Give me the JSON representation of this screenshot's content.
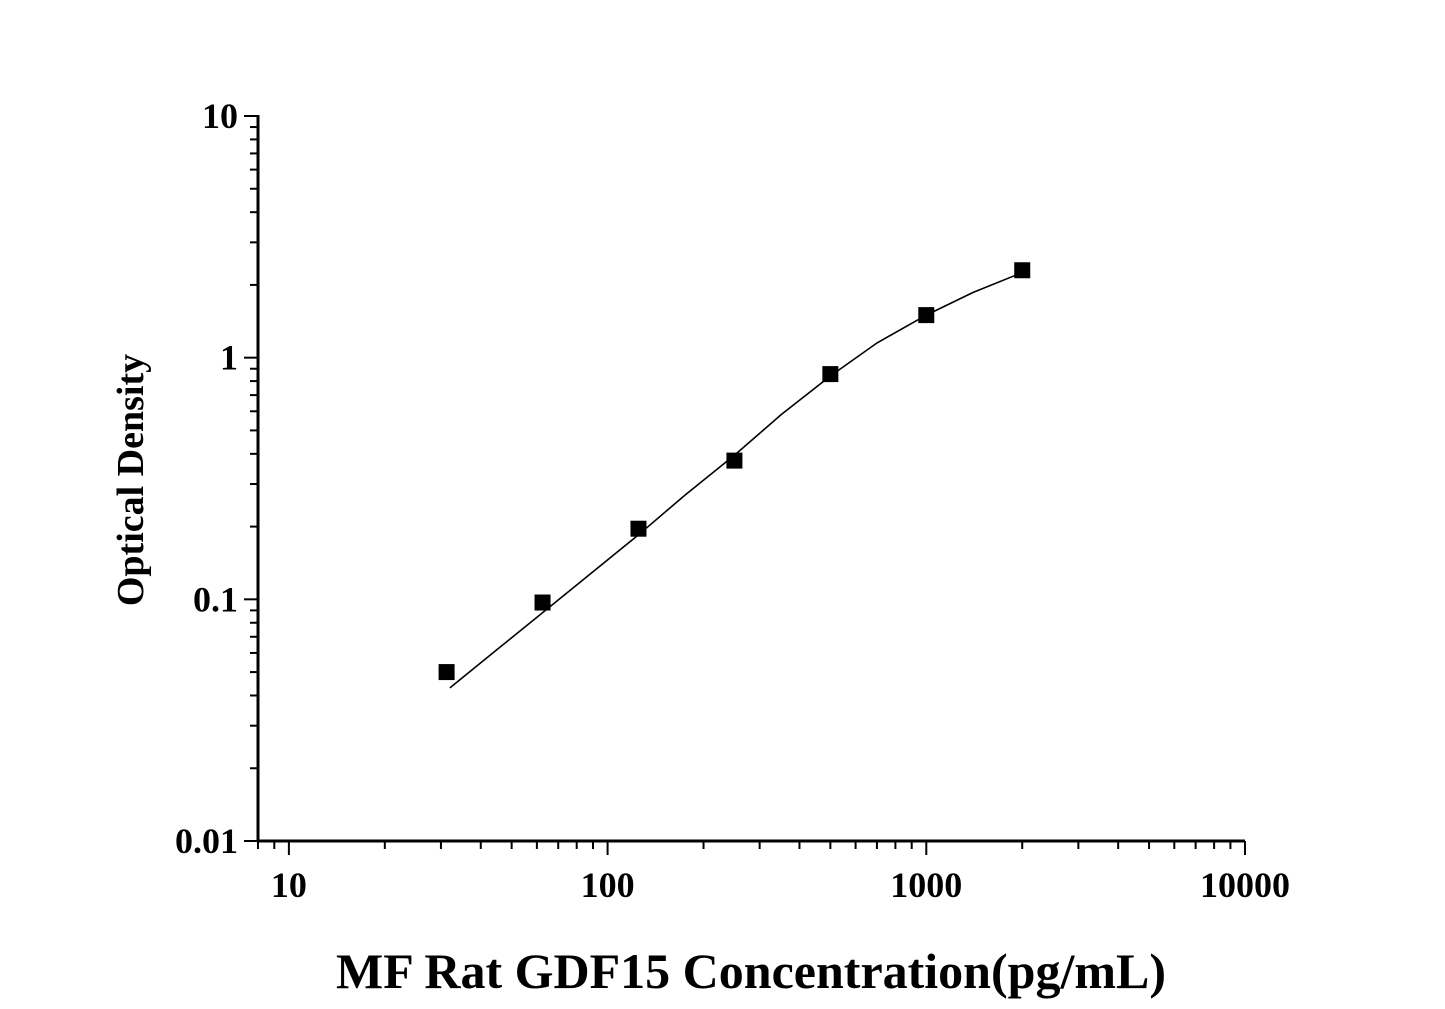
{
  "chart_data": {
    "type": "scatter",
    "x_scale": "log",
    "y_scale": "log",
    "xlabel": "MF Rat GDF15 Concentration(pg/mL)",
    "ylabel": "Optical Density",
    "xlim": [
      8,
      10000
    ],
    "ylim": [
      0.01,
      10
    ],
    "x_ticks": [
      "10",
      "100",
      "1000",
      "10000"
    ],
    "y_ticks": [
      "0.01",
      "0.1",
      "1",
      "10"
    ],
    "grid": false,
    "legend": "none",
    "series": [
      {
        "x": [
          31.25,
          62.5,
          125,
          250,
          500,
          1000,
          2000
        ],
        "y": [
          0.05,
          0.097,
          0.196,
          0.375,
          0.855,
          1.5,
          2.3
        ]
      }
    ],
    "fit_curve": {
      "x": [
        32,
        45,
        62.5,
        90,
        125,
        175,
        250,
        350,
        500,
        700,
        1000,
        1400,
        2000
      ],
      "y": [
        0.043,
        0.062,
        0.088,
        0.13,
        0.185,
        0.27,
        0.395,
        0.58,
        0.84,
        1.15,
        1.5,
        1.86,
        2.25
      ]
    },
    "marker_color": "#000000",
    "line_color": "#000000"
  }
}
